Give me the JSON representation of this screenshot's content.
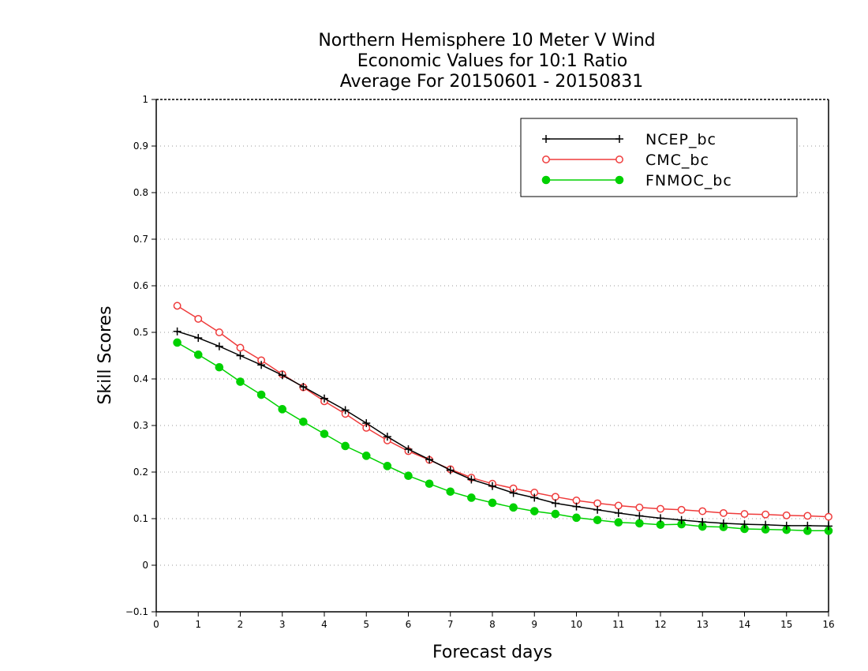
{
  "chart_data": {
    "type": "line",
    "title": [
      "Northern Hemisphere 10 Meter V Wind",
      "Economic Values for 10:1 Ratio",
      "Average For 20150601 - 20150831"
    ],
    "xlabel": "Forecast days",
    "ylabel": "Skill Scores",
    "xlim": [
      0,
      16
    ],
    "ylim": [
      -0.1,
      1
    ],
    "xticks": [
      0,
      1,
      2,
      3,
      4,
      5,
      6,
      7,
      8,
      9,
      10,
      11,
      12,
      13,
      14,
      15,
      16
    ],
    "xtick_labels": [
      "0",
      "1",
      "2",
      "3",
      "4",
      "5",
      "6",
      "7",
      "8",
      "9",
      "10",
      "11",
      "12",
      "13",
      "14",
      "15",
      "16"
    ],
    "yticks": [
      -0.1,
      0,
      0.1,
      0.2,
      0.3,
      0.4,
      0.5,
      0.6,
      0.7,
      0.8,
      0.9,
      1
    ],
    "ytick_labels": [
      "−0.1",
      "0",
      "0.1",
      "0.2",
      "0.3",
      "0.4",
      "0.5",
      "0.6",
      "0.7",
      "0.8",
      "0.9",
      "1"
    ],
    "grid": "horizontal dotted",
    "legend_position": "top-right",
    "x": [
      0.5,
      1,
      1.5,
      2,
      2.5,
      3,
      3.5,
      4,
      4.5,
      5,
      5.5,
      6,
      6.5,
      7,
      7.5,
      8,
      8.5,
      9,
      9.5,
      10,
      10.5,
      11,
      11.5,
      12,
      12.5,
      13,
      13.5,
      14,
      14.5,
      15,
      15.5,
      16
    ],
    "series": [
      {
        "name": "NCEP_bc",
        "color": "#000000",
        "marker": "plus",
        "values": [
          0.502,
          0.488,
          0.47,
          0.45,
          0.43,
          0.408,
          0.383,
          0.358,
          0.333,
          0.305,
          0.276,
          0.249,
          0.227,
          0.204,
          0.184,
          0.17,
          0.155,
          0.145,
          0.133,
          0.126,
          0.119,
          0.112,
          0.106,
          0.101,
          0.097,
          0.093,
          0.09,
          0.088,
          0.087,
          0.085,
          0.085,
          0.084
        ]
      },
      {
        "name": "CMC_bc",
        "color": "#ef3b3b",
        "marker": "open-circle",
        "values": [
          0.557,
          0.529,
          0.5,
          0.467,
          0.44,
          0.41,
          0.382,
          0.352,
          0.325,
          0.295,
          0.268,
          0.245,
          0.226,
          0.206,
          0.188,
          0.175,
          0.165,
          0.156,
          0.147,
          0.139,
          0.133,
          0.128,
          0.124,
          0.121,
          0.119,
          0.116,
          0.112,
          0.11,
          0.109,
          0.107,
          0.106,
          0.104
        ]
      },
      {
        "name": "FNMOC_bc",
        "color": "#00d100",
        "marker": "filled-circle",
        "values": [
          0.478,
          0.452,
          0.425,
          0.394,
          0.366,
          0.335,
          0.308,
          0.282,
          0.256,
          0.235,
          0.213,
          0.192,
          0.175,
          0.158,
          0.145,
          0.134,
          0.124,
          0.116,
          0.11,
          0.102,
          0.097,
          0.092,
          0.09,
          0.087,
          0.088,
          0.083,
          0.082,
          0.078,
          0.077,
          0.076,
          0.074,
          0.074
        ]
      }
    ]
  }
}
